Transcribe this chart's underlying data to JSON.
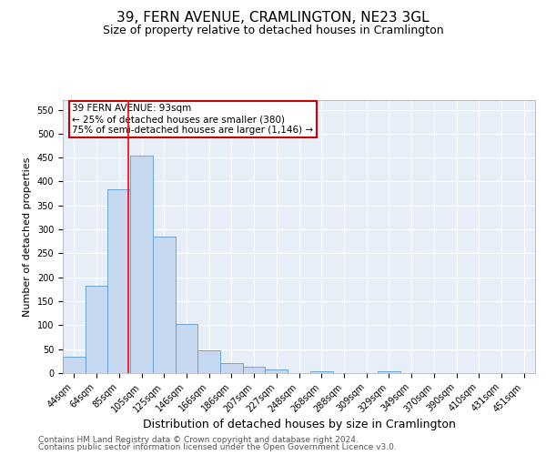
{
  "title": "39, FERN AVENUE, CRAMLINGTON, NE23 3GL",
  "subtitle": "Size of property relative to detached houses in Cramlington",
  "xlabel": "Distribution of detached houses by size in Cramlington",
  "ylabel": "Number of detached properties",
  "footer_line1": "Contains HM Land Registry data © Crown copyright and database right 2024.",
  "footer_line2": "Contains public sector information licensed under the Open Government Licence v3.0.",
  "bin_labels": [
    "44sqm",
    "64sqm",
    "85sqm",
    "105sqm",
    "125sqm",
    "146sqm",
    "166sqm",
    "186sqm",
    "207sqm",
    "227sqm",
    "248sqm",
    "268sqm",
    "288sqm",
    "309sqm",
    "329sqm",
    "349sqm",
    "370sqm",
    "390sqm",
    "410sqm",
    "431sqm",
    "451sqm"
  ],
  "bar_values": [
    35,
    183,
    383,
    455,
    285,
    103,
    48,
    20,
    13,
    8,
    0,
    3,
    0,
    0,
    4,
    0,
    0,
    0,
    0,
    0,
    0
  ],
  "bar_color": "#c6d9f0",
  "bar_edge_color": "#5b9bd5",
  "bar_width": 1.0,
  "red_line_x": 2.42,
  "annotation_text": "39 FERN AVENUE: 93sqm\n← 25% of detached houses are smaller (380)\n75% of semi-detached houses are larger (1,146) →",
  "annotation_box_color": "#cc0000",
  "ylim": [
    0,
    570
  ],
  "yticks": [
    0,
    50,
    100,
    150,
    200,
    250,
    300,
    350,
    400,
    450,
    500,
    550
  ],
  "bg_color": "#e8eef8",
  "title_fontsize": 11,
  "subtitle_fontsize": 9,
  "xlabel_fontsize": 9,
  "ylabel_fontsize": 8,
  "tick_fontsize": 7,
  "annotation_fontsize": 7.5,
  "footer_fontsize": 6.5
}
